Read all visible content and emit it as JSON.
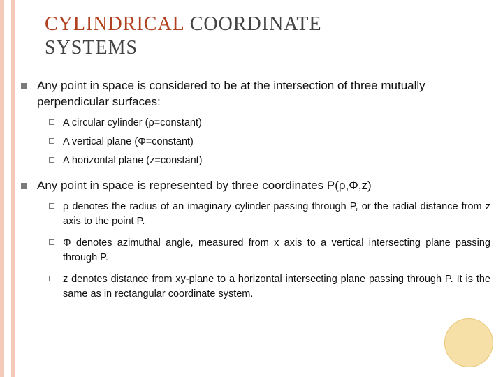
{
  "title": {
    "word1": "CYLINDRICAL",
    "word2": "COORDINATE",
    "word3": "SYSTEMS"
  },
  "colors": {
    "stripe": "#f5c9b8",
    "title_accent": "#b04020",
    "title_rest": "#444444",
    "circle_fill": "#f7dfa8",
    "circle_border": "#e6c876"
  },
  "bullets": [
    {
      "text": "Any point in space is considered to be at the intersection of three mutually perpendicular surfaces:",
      "sub": [
        {
          "text": "A circular cylinder (ρ=constant)"
        },
        {
          "text": "A vertical plane (Φ=constant)"
        },
        {
          "text": "A horizontal plane (z=constant)"
        }
      ]
    },
    {
      "text": "Any point in space is represented by three coordinates P(ρ,Φ,z)",
      "sub": [
        {
          "text": "ρ denotes the radius of an imaginary cylinder passing through P, or the radial distance from z axis to the point P."
        },
        {
          "text": "Φ denotes azimuthal angle, measured from x axis to a vertical intersecting plane passing through P."
        },
        {
          "text": "z denotes distance from xy-plane to a horizontal intersecting plane passing through P. It is the same as in rectangular coordinate system."
        }
      ]
    }
  ]
}
